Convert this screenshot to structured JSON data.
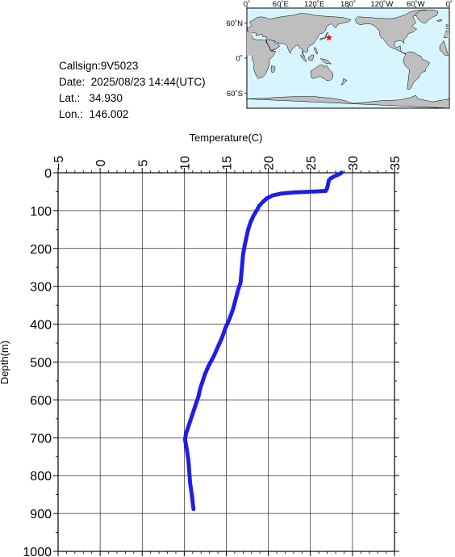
{
  "info": {
    "callsign_label": "Callsign:",
    "callsign": "9V5023",
    "date_label": "Date:",
    "date": "2025/08/23 14:44(UTC)",
    "lat_label": "Lat.:",
    "lat": "34.930",
    "lon_label": "Lon.:",
    "lon": "146.002"
  },
  "map": {
    "lon_labels": [
      "0˚",
      "60˚E",
      "120˚E",
      "180˚",
      "120˚W",
      "60˚W",
      "0˚"
    ],
    "lat_labels": [
      "60˚N",
      "0˚",
      "60˚S"
    ],
    "marker": {
      "lat": 34.93,
      "lon": 146.002
    },
    "ocean_color": "#d6f5ff",
    "land_color": "#bebebe",
    "marker_color": "#ff0000"
  },
  "chart_data": {
    "type": "line",
    "xlabel": "Temperature(C)",
    "ylabel": "Depth(m)",
    "xlim": [
      -5,
      35
    ],
    "ylim": [
      1000,
      0
    ],
    "x_ticks": [
      -5,
      0,
      5,
      10,
      15,
      20,
      25,
      30,
      35
    ],
    "y_ticks": [
      0,
      100,
      200,
      300,
      400,
      500,
      600,
      700,
      800,
      900,
      1000
    ],
    "grid": true,
    "line_color": "#1e1ee6",
    "profile": [
      [
        28.7,
        0
      ],
      [
        28.3,
        5
      ],
      [
        27.8,
        10
      ],
      [
        27.4,
        15
      ],
      [
        27.2,
        20
      ],
      [
        27.1,
        30
      ],
      [
        27.0,
        40
      ],
      [
        26.9,
        45
      ],
      [
        26.8,
        48
      ],
      [
        25.0,
        50
      ],
      [
        23.0,
        52
      ],
      [
        21.5,
        55
      ],
      [
        20.5,
        60
      ],
      [
        19.8,
        68
      ],
      [
        19.3,
        78
      ],
      [
        18.9,
        88
      ],
      [
        18.6,
        100
      ],
      [
        18.2,
        115
      ],
      [
        17.9,
        130
      ],
      [
        17.6,
        150
      ],
      [
        17.4,
        170
      ],
      [
        17.2,
        190
      ],
      [
        17.0,
        215
      ],
      [
        16.9,
        240
      ],
      [
        16.8,
        265
      ],
      [
        16.7,
        290
      ],
      [
        16.4,
        310
      ],
      [
        16.1,
        335
      ],
      [
        15.8,
        360
      ],
      [
        15.4,
        385
      ],
      [
        14.9,
        410
      ],
      [
        14.5,
        435
      ],
      [
        14.0,
        460
      ],
      [
        13.5,
        485
      ],
      [
        12.9,
        510
      ],
      [
        12.5,
        530
      ],
      [
        12.2,
        550
      ],
      [
        11.9,
        570
      ],
      [
        11.7,
        590
      ],
      [
        11.4,
        610
      ],
      [
        11.1,
        630
      ],
      [
        10.8,
        650
      ],
      [
        10.5,
        670
      ],
      [
        10.2,
        690
      ],
      [
        10.1,
        705
      ],
      [
        10.3,
        730
      ],
      [
        10.5,
        760
      ],
      [
        10.6,
        790
      ],
      [
        10.7,
        820
      ],
      [
        10.9,
        850
      ],
      [
        11.0,
        870
      ],
      [
        11.1,
        888
      ]
    ]
  }
}
